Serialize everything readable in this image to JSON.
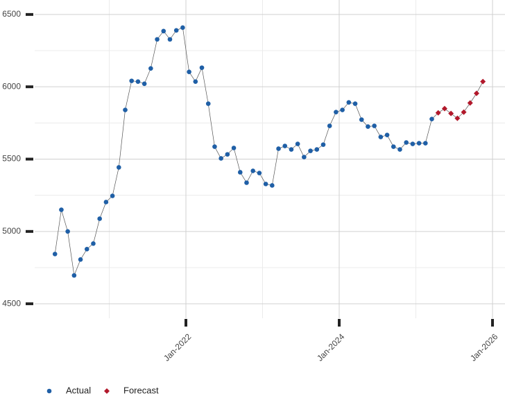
{
  "chart_data": {
    "type": "line",
    "x": [
      "2020-04",
      "2020-05",
      "2020-06",
      "2020-07",
      "2020-08",
      "2020-09",
      "2020-10",
      "2020-11",
      "2020-12",
      "2021-01",
      "2021-02",
      "2021-03",
      "2021-04",
      "2021-05",
      "2021-06",
      "2021-07",
      "2021-08",
      "2021-09",
      "2021-10",
      "2021-11",
      "2021-12",
      "2022-01",
      "2022-02",
      "2022-03",
      "2022-04",
      "2022-05",
      "2022-06",
      "2022-07",
      "2022-08",
      "2022-09",
      "2022-10",
      "2022-11",
      "2022-12",
      "2023-01",
      "2023-02",
      "2023-03",
      "2023-04",
      "2023-05",
      "2023-06",
      "2023-07",
      "2023-08",
      "2023-09",
      "2023-10",
      "2023-11",
      "2023-12",
      "2024-01",
      "2024-02",
      "2024-03",
      "2024-04",
      "2024-05",
      "2024-06",
      "2024-07",
      "2024-08",
      "2024-09",
      "2024-10",
      "2024-11",
      "2024-12",
      "2025-01",
      "2025-02",
      "2025-03",
      "2025-04",
      "2025-05",
      "2025-06",
      "2025-07",
      "2025-08",
      "2025-09",
      "2025-10",
      "2025-11"
    ],
    "series": [
      {
        "name": "Actual",
        "color": "#1f5fa6",
        "marker": "circle",
        "values": [
          4844,
          5150,
          5000,
          4696,
          4806,
          4878,
          4916,
          5088,
          5203,
          5246,
          5443,
          5840,
          6041,
          6036,
          6021,
          6127,
          6328,
          6385,
          6328,
          6390,
          6409,
          6103,
          6036,
          6132,
          5883,
          5586,
          5505,
          5533,
          5577,
          5409,
          5337,
          5419,
          5404,
          5328,
          5318,
          5572,
          5591,
          5567,
          5605,
          5514,
          5557,
          5567,
          5600,
          5730,
          5825,
          5840,
          5892,
          5883,
          5773,
          5725,
          5730,
          5653,
          5667,
          5586,
          5567,
          5615,
          5605,
          5610,
          5610,
          5777,
          null,
          null,
          null,
          null,
          null,
          null,
          null,
          null
        ]
      },
      {
        "name": "Forecast",
        "color": "#b2182b",
        "marker": "diamond",
        "values": [
          null,
          null,
          null,
          null,
          null,
          null,
          null,
          null,
          null,
          null,
          null,
          null,
          null,
          null,
          null,
          null,
          null,
          null,
          null,
          null,
          null,
          null,
          null,
          null,
          null,
          null,
          null,
          null,
          null,
          null,
          null,
          null,
          null,
          null,
          null,
          null,
          null,
          null,
          null,
          null,
          null,
          null,
          null,
          null,
          null,
          null,
          null,
          null,
          null,
          null,
          null,
          null,
          null,
          null,
          null,
          null,
          null,
          null,
          null,
          null,
          5820,
          5849,
          5816,
          5782,
          5825,
          5888,
          5955,
          6036
        ]
      }
    ],
    "line_color": "#555555",
    "xlim": [
      "2020-01",
      "2026-03"
    ],
    "xticks": [
      {
        "value": "2022-01",
        "label": "Jan-2022"
      },
      {
        "value": "2024-01",
        "label": "Jan-2024"
      },
      {
        "value": "2026-01",
        "label": "Jan-2026"
      }
    ],
    "x_minor_ticks": [
      "2021-01",
      "2023-01",
      "2025-01"
    ],
    "ylim": [
      4400,
      6600
    ],
    "yticks": [
      4500,
      5000,
      5500,
      6000,
      6500
    ],
    "y_minor_ticks": [
      4750,
      5250,
      5750,
      6250
    ],
    "grid": true,
    "legend": "bottom-left"
  }
}
